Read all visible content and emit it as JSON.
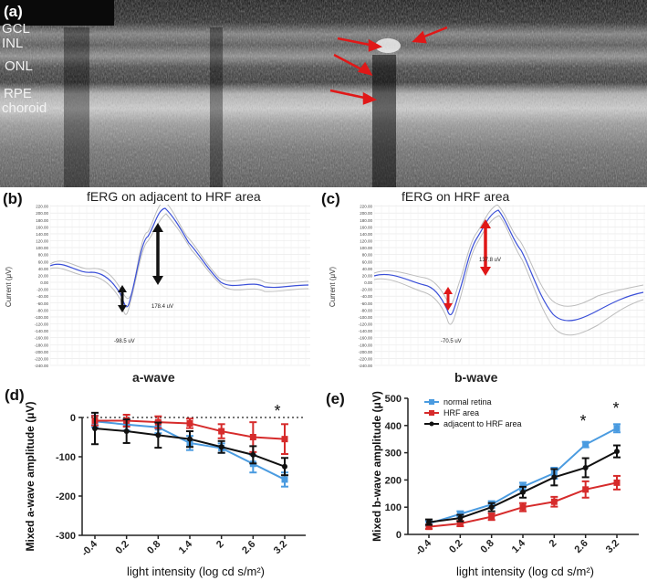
{
  "panel_a": {
    "label": "(a)",
    "layers": [
      "GCL",
      "INL",
      "ONL",
      "RPE",
      "choroid"
    ]
  },
  "panel_b": {
    "label": "(b)",
    "title": "fERG on adjacent to HRF area",
    "ylabel": "Current (μV)",
    "a_wave_value": "-98.5 uV",
    "b_wave_value": "178.4 uV",
    "yticks": [
      "240.00",
      "220.00",
      "200.00",
      "180.00",
      "160.00",
      "140.00",
      "120.00",
      "100.00",
      "80.00",
      "60.00",
      "40.00",
      "20.00",
      "0.00",
      "-20.00",
      "-40.00",
      "-60.00",
      "-80.00",
      "-100.00",
      "-120.00",
      "-140.00",
      "-160.00",
      "-180.00",
      "-200.00",
      "-220.00",
      "-240.00"
    ]
  },
  "panel_c": {
    "label": "(c)",
    "title": "fERG on HRF area",
    "ylabel": "Current (μV)",
    "a_wave_value": "-70.5 uV",
    "b_wave_value": "137.8 uV",
    "yticks": [
      "240.00",
      "220.00",
      "200.00",
      "180.00",
      "160.00",
      "140.00",
      "120.00",
      "100.00",
      "80.00",
      "60.00",
      "40.00",
      "20.00",
      "0.00",
      "-20.00",
      "-40.00",
      "-60.00",
      "-80.00",
      "-100.00",
      "-120.00",
      "-140.00",
      "-160.00",
      "-180.00",
      "-200.00",
      "-220.00",
      "-240.00"
    ]
  },
  "wave_labels": {
    "a": "a-wave",
    "b": "b-wave"
  },
  "colors": {
    "normal": "#4a9be0",
    "hrf": "#d62b2b",
    "adjacent": "#111111",
    "arrow_red": "#e01818",
    "trace": "#3a4fd8"
  },
  "chart_data": [
    {
      "type": "line",
      "panel": "(d)",
      "title": "",
      "xlabel": "light intensity (log cd s/m²)",
      "ylabel": "Mixed a-wave amplitude (μV)",
      "x": [
        "-0.4",
        "0.2",
        "0.8",
        "1.4",
        "2",
        "2.6",
        "3.2"
      ],
      "ylim": [
        -300,
        0
      ],
      "yticks": [
        "0",
        "-100",
        "-200",
        "-300"
      ],
      "annotation": "*",
      "series": [
        {
          "name": "normal retina",
          "color": "#4a9be0",
          "values": [
            -10,
            -18,
            -25,
            -65,
            -78,
            -118,
            -158
          ],
          "errors": [
            15,
            15,
            15,
            18,
            12,
            22,
            18
          ]
        },
        {
          "name": "HRF area",
          "color": "#d62b2b",
          "values": [
            -8,
            -8,
            -12,
            -15,
            -35,
            -50,
            -55
          ],
          "errors": [
            12,
            15,
            15,
            12,
            18,
            38,
            38
          ]
        },
        {
          "name": "adjacent to HRF area",
          "color": "#111111",
          "values": [
            -28,
            -35,
            -45,
            -55,
            -75,
            -95,
            -125
          ],
          "errors": [
            40,
            30,
            32,
            20,
            15,
            22,
            22
          ]
        }
      ]
    },
    {
      "type": "line",
      "panel": "(e)",
      "title": "",
      "xlabel": "light intensity (log cd s/m²)",
      "ylabel": "Mixed b-wave amplitude (μV)",
      "x": [
        "-0.4",
        "0.2",
        "0.8",
        "1.4",
        "2",
        "2.6",
        "3.2"
      ],
      "ylim": [
        0,
        500
      ],
      "yticks": [
        "0",
        "100",
        "200",
        "300",
        "400",
        "500"
      ],
      "annotations": [
        "*",
        "*"
      ],
      "legend": [
        "normal retina",
        "HRF area",
        "adjacent to HRF area"
      ],
      "series": [
        {
          "name": "normal retina",
          "color": "#4a9be0",
          "values": [
            40,
            75,
            110,
            175,
            225,
            330,
            390
          ],
          "errors": [
            8,
            10,
            12,
            15,
            20,
            10,
            15
          ]
        },
        {
          "name": "HRF area",
          "color": "#d62b2b",
          "values": [
            28,
            40,
            65,
            100,
            120,
            165,
            190
          ],
          "errors": [
            8,
            10,
            12,
            15,
            18,
            30,
            25
          ]
        },
        {
          "name": "adjacent to HRF area",
          "color": "#111111",
          "values": [
            45,
            60,
            100,
            155,
            210,
            245,
            305
          ],
          "errors": [
            10,
            12,
            15,
            20,
            30,
            35,
            22
          ]
        }
      ]
    }
  ]
}
